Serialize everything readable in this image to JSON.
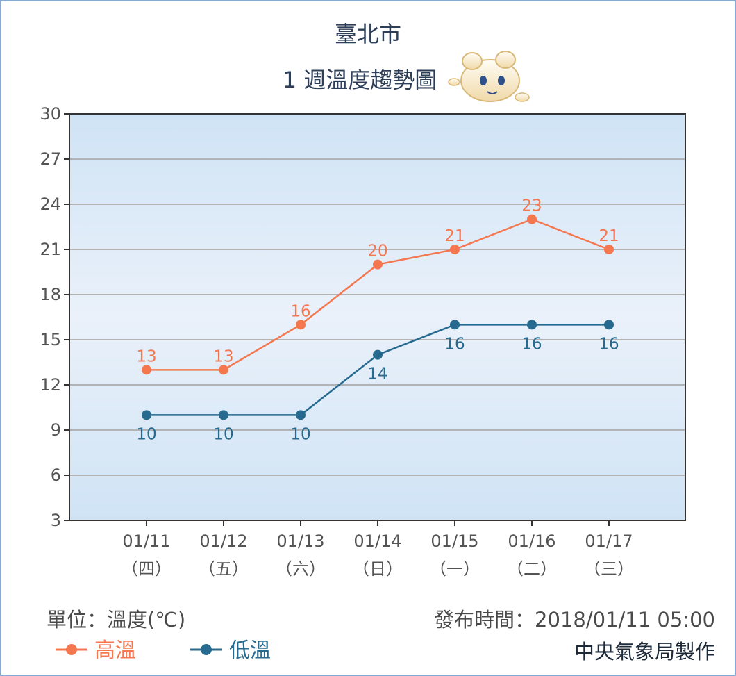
{
  "chart_data": {
    "type": "line",
    "title": "臺北市",
    "subtitle": "1 週溫度趨勢圖",
    "ylim": [
      3,
      30
    ],
    "yticks": [
      3,
      6,
      9,
      12,
      15,
      18,
      21,
      24,
      27,
      30
    ],
    "grid": true,
    "categories": [
      "01/11",
      "01/12",
      "01/13",
      "01/14",
      "01/15",
      "01/16",
      "01/17"
    ],
    "weekdays": [
      "（四）",
      "（五）",
      "（六）",
      "（日）",
      "（一）",
      "（二）",
      "（三）"
    ],
    "series": [
      {
        "name": "高溫",
        "color": "#f47750",
        "values": [
          13,
          13,
          16,
          20,
          21,
          23,
          21
        ]
      },
      {
        "name": "低溫",
        "color": "#266a8f",
        "values": [
          10,
          10,
          10,
          14,
          16,
          16,
          16
        ]
      }
    ],
    "legend_placement": "bottom-left"
  },
  "footer": {
    "unit": "單位：溫度(℃)",
    "published": "發布時間：2018/01/11 05:00",
    "credit": "中央氣象局製作"
  },
  "mascot_icon": "cloud-mascot-icon"
}
